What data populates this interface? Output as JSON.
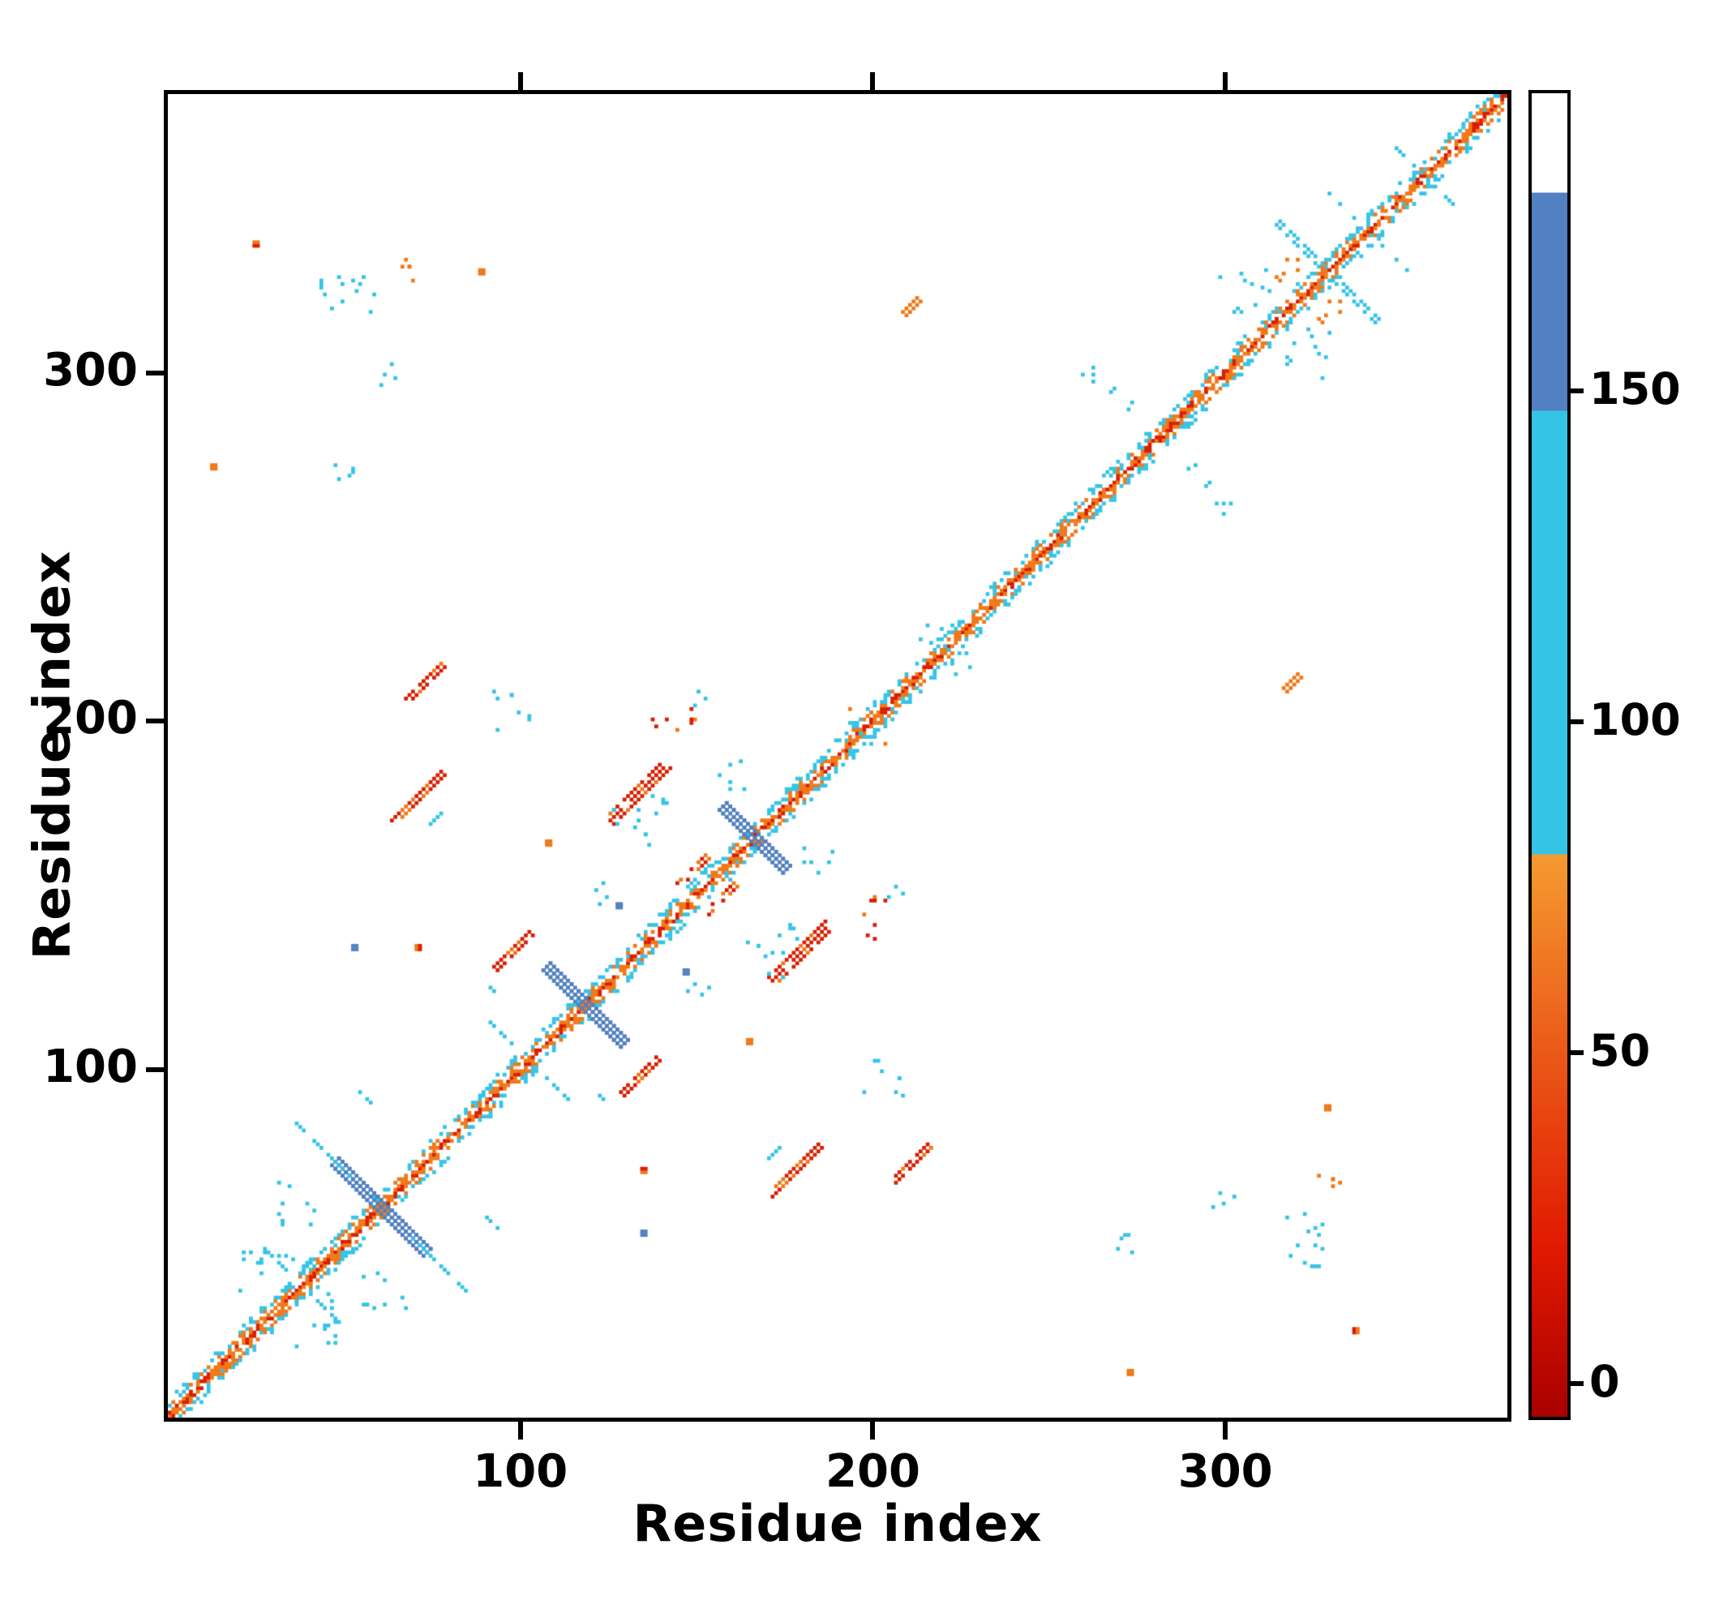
{
  "figure": {
    "background": "#ffffff"
  },
  "chart_data": {
    "type": "heatmap",
    "title": "",
    "xlabel": "Residue index",
    "ylabel": "Residue index",
    "x_range": [
      0,
      380
    ],
    "y_range": [
      0,
      380
    ],
    "x_ticks": [
      100,
      200,
      300
    ],
    "y_ticks": [
      100,
      200,
      300
    ],
    "grid": false,
    "legend": "colorbar-right",
    "n_residues": 380,
    "render_seed": 11,
    "palette": {
      "red": "#d81e00",
      "orange": "#f07818",
      "cyan": "#35c4e6",
      "blue": "#5280c0",
      "white": "#ffffff"
    },
    "colorbar": {
      "ticks": [
        0,
        50,
        100,
        150
      ],
      "value_range": [
        -5,
        195
      ],
      "segments": [
        {
          "from": -5,
          "to": 20,
          "color_from": "#a80000",
          "color_to": "#e01800"
        },
        {
          "from": 20,
          "to": 80,
          "color_from": "#e01800",
          "color_to": "#f59a30"
        },
        {
          "from": 80,
          "to": 147,
          "color_from": "#35c4e6",
          "color_to": "#35c4e6"
        },
        {
          "from": 147,
          "to": 180,
          "color_from": "#5280c0",
          "color_to": "#5280c0"
        },
        {
          "from": 180,
          "to": 195,
          "color_from": "#ffffff",
          "color_to": "#ffffff"
        }
      ]
    },
    "diagonal_bands": [
      {
        "offset": 0,
        "choices": [
          [
            "red",
            0.5
          ],
          [
            "orange",
            0.38
          ]
        ]
      },
      {
        "offset": 1,
        "choices": [
          [
            "orange",
            0.5
          ],
          [
            "red",
            0.18
          ]
        ]
      },
      {
        "offset": 2,
        "choices": [
          [
            "orange",
            0.25
          ],
          [
            "cyan",
            0.08
          ]
        ]
      },
      {
        "offset": 3,
        "choices": [
          [
            "orange",
            0.3
          ],
          [
            "cyan",
            0.28
          ]
        ]
      },
      {
        "offset": 4,
        "choices": [
          [
            "cyan",
            0.38
          ]
        ]
      },
      {
        "offset": 5,
        "choices": [
          [
            "cyan",
            0.16
          ]
        ]
      }
    ],
    "clusters": [
      {
        "t": "anti",
        "i": 60,
        "j": 60,
        "len": 26,
        "w": 3,
        "c": "blue",
        "d": 0.95
      },
      {
        "t": "anti",
        "i": 118,
        "j": 118,
        "len": 22,
        "w": 3,
        "c": "blue",
        "d": 0.95
      },
      {
        "t": "anti",
        "i": 166,
        "j": 166,
        "len": 18,
        "w": 3,
        "c": "blue",
        "d": 0.95
      },
      {
        "t": "anti",
        "i": 43,
        "j": 77,
        "len": 16,
        "w": 1,
        "c": "cyan",
        "d": 0.6
      },
      {
        "t": "anti",
        "i": 54,
        "j": 93,
        "len": 10,
        "w": 1,
        "c": "cyan",
        "d": 0.55
      },
      {
        "t": "scatter",
        "i": 35,
        "j": 60,
        "r": 7,
        "n": 10,
        "c": "cyan"
      },
      {
        "t": "scatter",
        "i": 28,
        "j": 40,
        "r": 8,
        "n": 14,
        "c": "cyan"
      },
      {
        "t": "anti",
        "i": 30,
        "j": 45,
        "len": 8,
        "w": 1,
        "c": "cyan",
        "d": 0.6
      },
      {
        "t": "par",
        "i": 70,
        "j": 178,
        "len": 14,
        "w": 2,
        "c": "red",
        "d": 0.92
      },
      {
        "t": "par",
        "i": 75,
        "j": 171,
        "len": 4,
        "w": 1,
        "c": "cyan",
        "d": 0.8
      },
      {
        "t": "par",
        "i": 72,
        "j": 211,
        "len": 10,
        "w": 2,
        "c": "red",
        "d": 0.92
      },
      {
        "t": "par",
        "i": 133,
        "j": 179,
        "len": 16,
        "w": 3,
        "c": "red",
        "d": 0.9
      },
      {
        "t": "scatter",
        "i": 141,
        "j": 176,
        "r": 4,
        "n": 5,
        "c": "cyan"
      },
      {
        "t": "par",
        "i": 97,
        "j": 134,
        "len": 10,
        "w": 2,
        "c": "red",
        "d": 0.92
      },
      {
        "t": "anti",
        "i": 88,
        "j": 126,
        "len": 10,
        "w": 1,
        "c": "cyan",
        "d": 0.55
      },
      {
        "t": "anti",
        "i": 95,
        "j": 109,
        "len": 8,
        "w": 1,
        "c": "cyan",
        "d": 0.5
      },
      {
        "t": "par",
        "i": 148,
        "j": 157,
        "len": 8,
        "w": 2,
        "c": "mixed_red",
        "d": 0.8
      },
      {
        "t": "scatter",
        "i": 195,
        "j": 200,
        "r": 4,
        "n": 6,
        "c": "mixed_cyan"
      },
      {
        "t": "scatter",
        "i": 216,
        "j": 224,
        "r": 4,
        "n": 5,
        "c": "cyan"
      },
      {
        "t": "par",
        "i": 210,
        "j": 319,
        "len": 4,
        "w": 2,
        "c": "orange",
        "d": 0.95
      },
      {
        "t": "dot",
        "i": 24,
        "j": 336,
        "w": 2,
        "c": "red"
      },
      {
        "t": "scatter",
        "i": 50,
        "j": 325,
        "r": 9,
        "n": 14,
        "c": "cyan"
      },
      {
        "t": "scatter",
        "i": 64,
        "j": 330,
        "r": 5,
        "n": 5,
        "c": "orange"
      },
      {
        "t": "dot",
        "i": 88,
        "j": 328,
        "w": 2,
        "c": "orange"
      },
      {
        "t": "scatter",
        "i": 50,
        "j": 273,
        "r": 4,
        "n": 5,
        "c": "cyan"
      },
      {
        "t": "dot",
        "i": 12,
        "j": 272,
        "w": 2,
        "c": "orange"
      },
      {
        "t": "scatter",
        "i": 62,
        "j": 299,
        "r": 4,
        "n": 4,
        "c": "cyan"
      },
      {
        "t": "scatter",
        "i": 97,
        "j": 203,
        "r": 6,
        "n": 8,
        "c": "cyan"
      },
      {
        "t": "scatter",
        "i": 143,
        "j": 199,
        "r": 6,
        "n": 8,
        "c": "mixed_red"
      },
      {
        "t": "scatter",
        "i": 130,
        "j": 168,
        "r": 6,
        "n": 8,
        "c": "cyan"
      },
      {
        "t": "dot",
        "i": 107,
        "j": 164,
        "w": 2,
        "c": "orange"
      },
      {
        "t": "scatter",
        "i": 122,
        "j": 149,
        "r": 4,
        "n": 4,
        "c": "cyan"
      },
      {
        "t": "dot",
        "i": 52,
        "j": 134,
        "w": 2,
        "c": "blue"
      },
      {
        "t": "dot",
        "i": 70,
        "j": 134,
        "w": 2,
        "c": "red"
      },
      {
        "t": "dot",
        "i": 127,
        "j": 146,
        "w": 2,
        "c": "blue"
      },
      {
        "t": "scatter",
        "i": 158,
        "j": 184,
        "r": 5,
        "n": 6,
        "c": "mixed_cyan"
      },
      {
        "t": "scatter",
        "i": 152,
        "j": 205,
        "r": 3,
        "n": 3,
        "c": "cyan"
      },
      {
        "t": "anti",
        "i": 320,
        "j": 336,
        "len": 12,
        "w": 2,
        "c": "cyan",
        "d": 0.7
      },
      {
        "t": "anti",
        "i": 333,
        "j": 347,
        "len": 8,
        "w": 1,
        "c": "cyan",
        "d": 0.7
      },
      {
        "t": "scatter",
        "i": 317,
        "j": 330,
        "r": 5,
        "n": 6,
        "c": "orange"
      },
      {
        "t": "scatter",
        "i": 306,
        "j": 324,
        "r": 8,
        "n": 12,
        "c": "cyan"
      },
      {
        "t": "scatter",
        "i": 266,
        "j": 295,
        "r": 7,
        "n": 8,
        "c": "cyan"
      },
      {
        "t": "anti",
        "i": 352,
        "j": 360,
        "len": 8,
        "w": 1,
        "c": "cyan",
        "d": 0.6
      }
    ]
  }
}
